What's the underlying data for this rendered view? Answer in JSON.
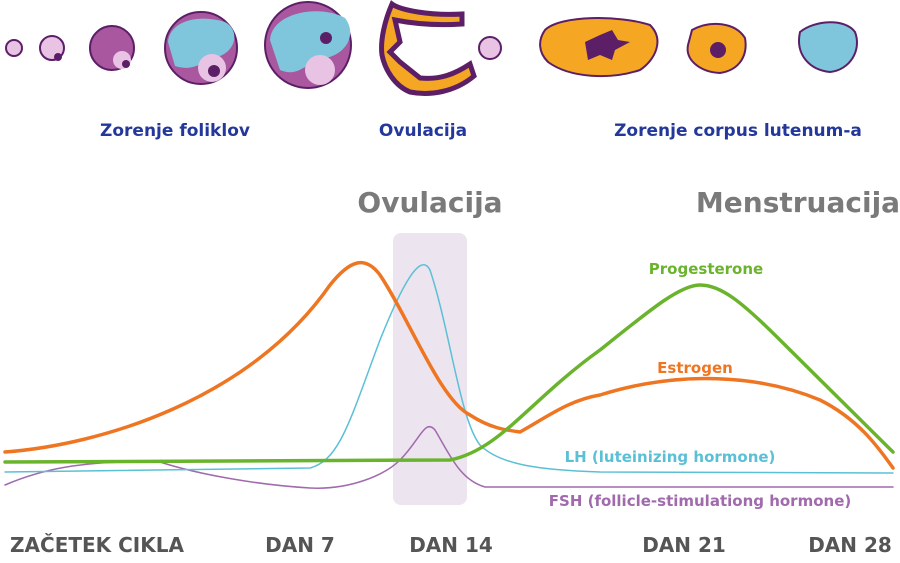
{
  "stages": [
    "Zorenje foliklov",
    "Ovulacija",
    "Zorenje corpus lutenum-a"
  ],
  "phases": [
    "Ovulacija",
    "Menstruacija"
  ],
  "hormones": [
    "Progesterone",
    "Estrogen",
    "LH (luteinizing hormone)",
    "FSH (follicle-stimulationg hormone)"
  ],
  "days": [
    "ZAČETEK CIKLA",
    "DAN 7",
    "DAN 14",
    "DAN 21",
    "DAN 28"
  ]
}
